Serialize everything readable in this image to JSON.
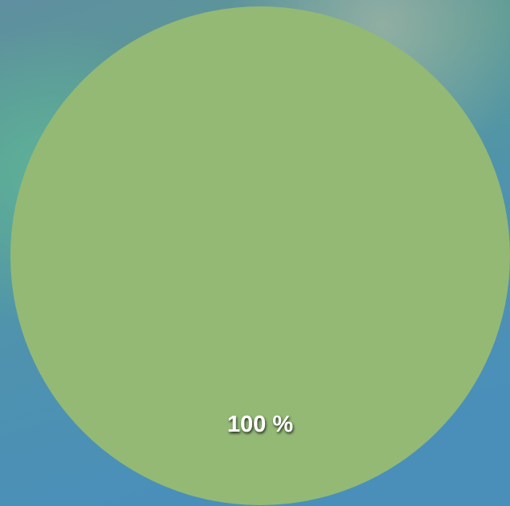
{
  "chart_data": {
    "type": "pie",
    "categories": [
      null
    ],
    "values": [
      100
    ],
    "value_labels": [
      "100 %"
    ],
    "colors": [
      "#93b975"
    ]
  }
}
